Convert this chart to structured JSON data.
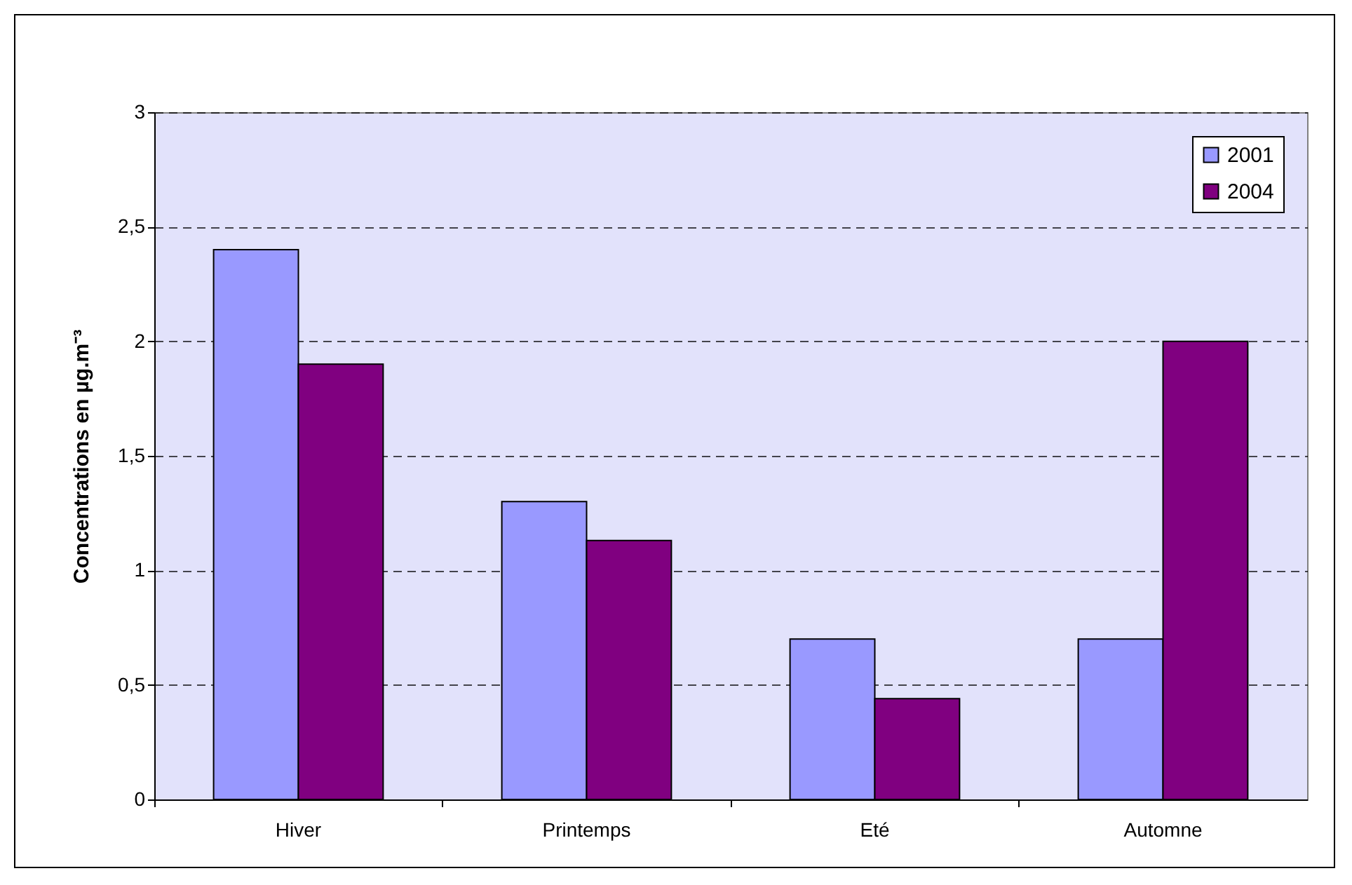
{
  "chart_data": {
    "type": "bar",
    "ylabel": "Concentrations en µg.m⁻³",
    "categories": [
      "Hiver",
      "Printemps",
      "Eté",
      "Automne"
    ],
    "series": [
      {
        "name": "2001",
        "color": "#9999ff",
        "values": [
          2.4,
          1.3,
          0.7,
          0.7
        ]
      },
      {
        "name": "2004",
        "color": "#800080",
        "values": [
          1.9,
          1.13,
          0.44,
          2.0
        ]
      }
    ],
    "ylim": [
      0,
      3
    ],
    "yticks": [
      {
        "value": 0,
        "label": "0"
      },
      {
        "value": 0.5,
        "label": "0,5"
      },
      {
        "value": 1,
        "label": "1"
      },
      {
        "value": 1.5,
        "label": "1,5"
      },
      {
        "value": 2,
        "label": "2"
      },
      {
        "value": 2.5,
        "label": "2,5"
      },
      {
        "value": 3,
        "label": "3"
      }
    ],
    "grid": "y",
    "line_style": "dashed",
    "legend": "top right"
  }
}
